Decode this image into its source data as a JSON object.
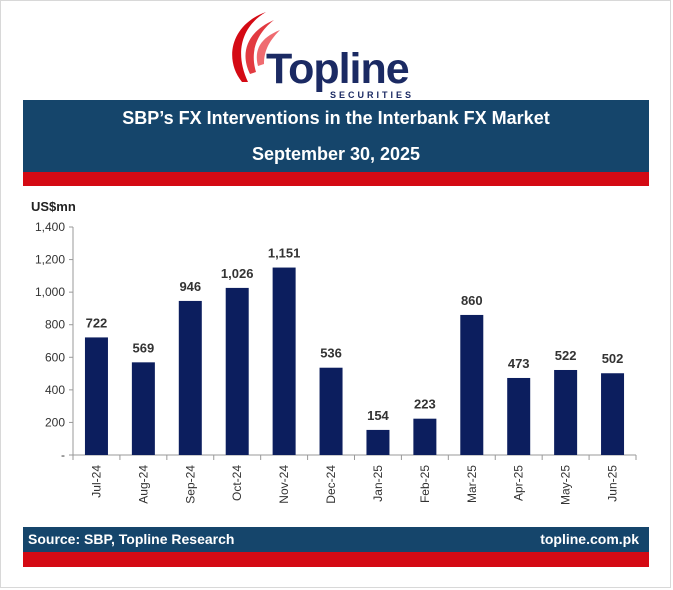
{
  "brand": {
    "name": "Topline",
    "tagline": "SECURITIES",
    "colors": {
      "navy": "#1b2a63",
      "red": "#d40a14",
      "banner": "#15456b",
      "bar": "#0c1e5e"
    }
  },
  "header": {
    "title": "SBP’s FX Interventions in the Interbank FX Market",
    "date": "September 30, 2025"
  },
  "footer": {
    "source": "Source: SBP, Topline Research",
    "website": "topline.com.pk"
  },
  "chart_data": {
    "type": "bar",
    "title": "SBP’s FX Interventions in the Interbank FX Market",
    "ylabel": "US$mn",
    "xlabel": "",
    "ylim": [
      0,
      1400
    ],
    "yticks": [
      0,
      200,
      400,
      600,
      800,
      1000,
      1200,
      1400
    ],
    "ytick_labels": [
      "-",
      "200",
      "400",
      "600",
      "800",
      "1,000",
      "1,200",
      "1,400"
    ],
    "categories": [
      "Jul-24",
      "Aug-24",
      "Sep-24",
      "Oct-24",
      "Nov-24",
      "Dec-24",
      "Jan-25",
      "Feb-25",
      "Mar-25",
      "Apr-25",
      "May-25",
      "Jun-25"
    ],
    "values": [
      722,
      569,
      946,
      1026,
      1151,
      536,
      154,
      223,
      860,
      473,
      522,
      502
    ],
    "value_labels": [
      "722",
      "569",
      "946",
      "1,026",
      "1,151",
      "536",
      "154",
      "223",
      "860",
      "473",
      "522",
      "502"
    ],
    "grid": false,
    "legend": "none",
    "bar_color": "#0c1e5e"
  }
}
